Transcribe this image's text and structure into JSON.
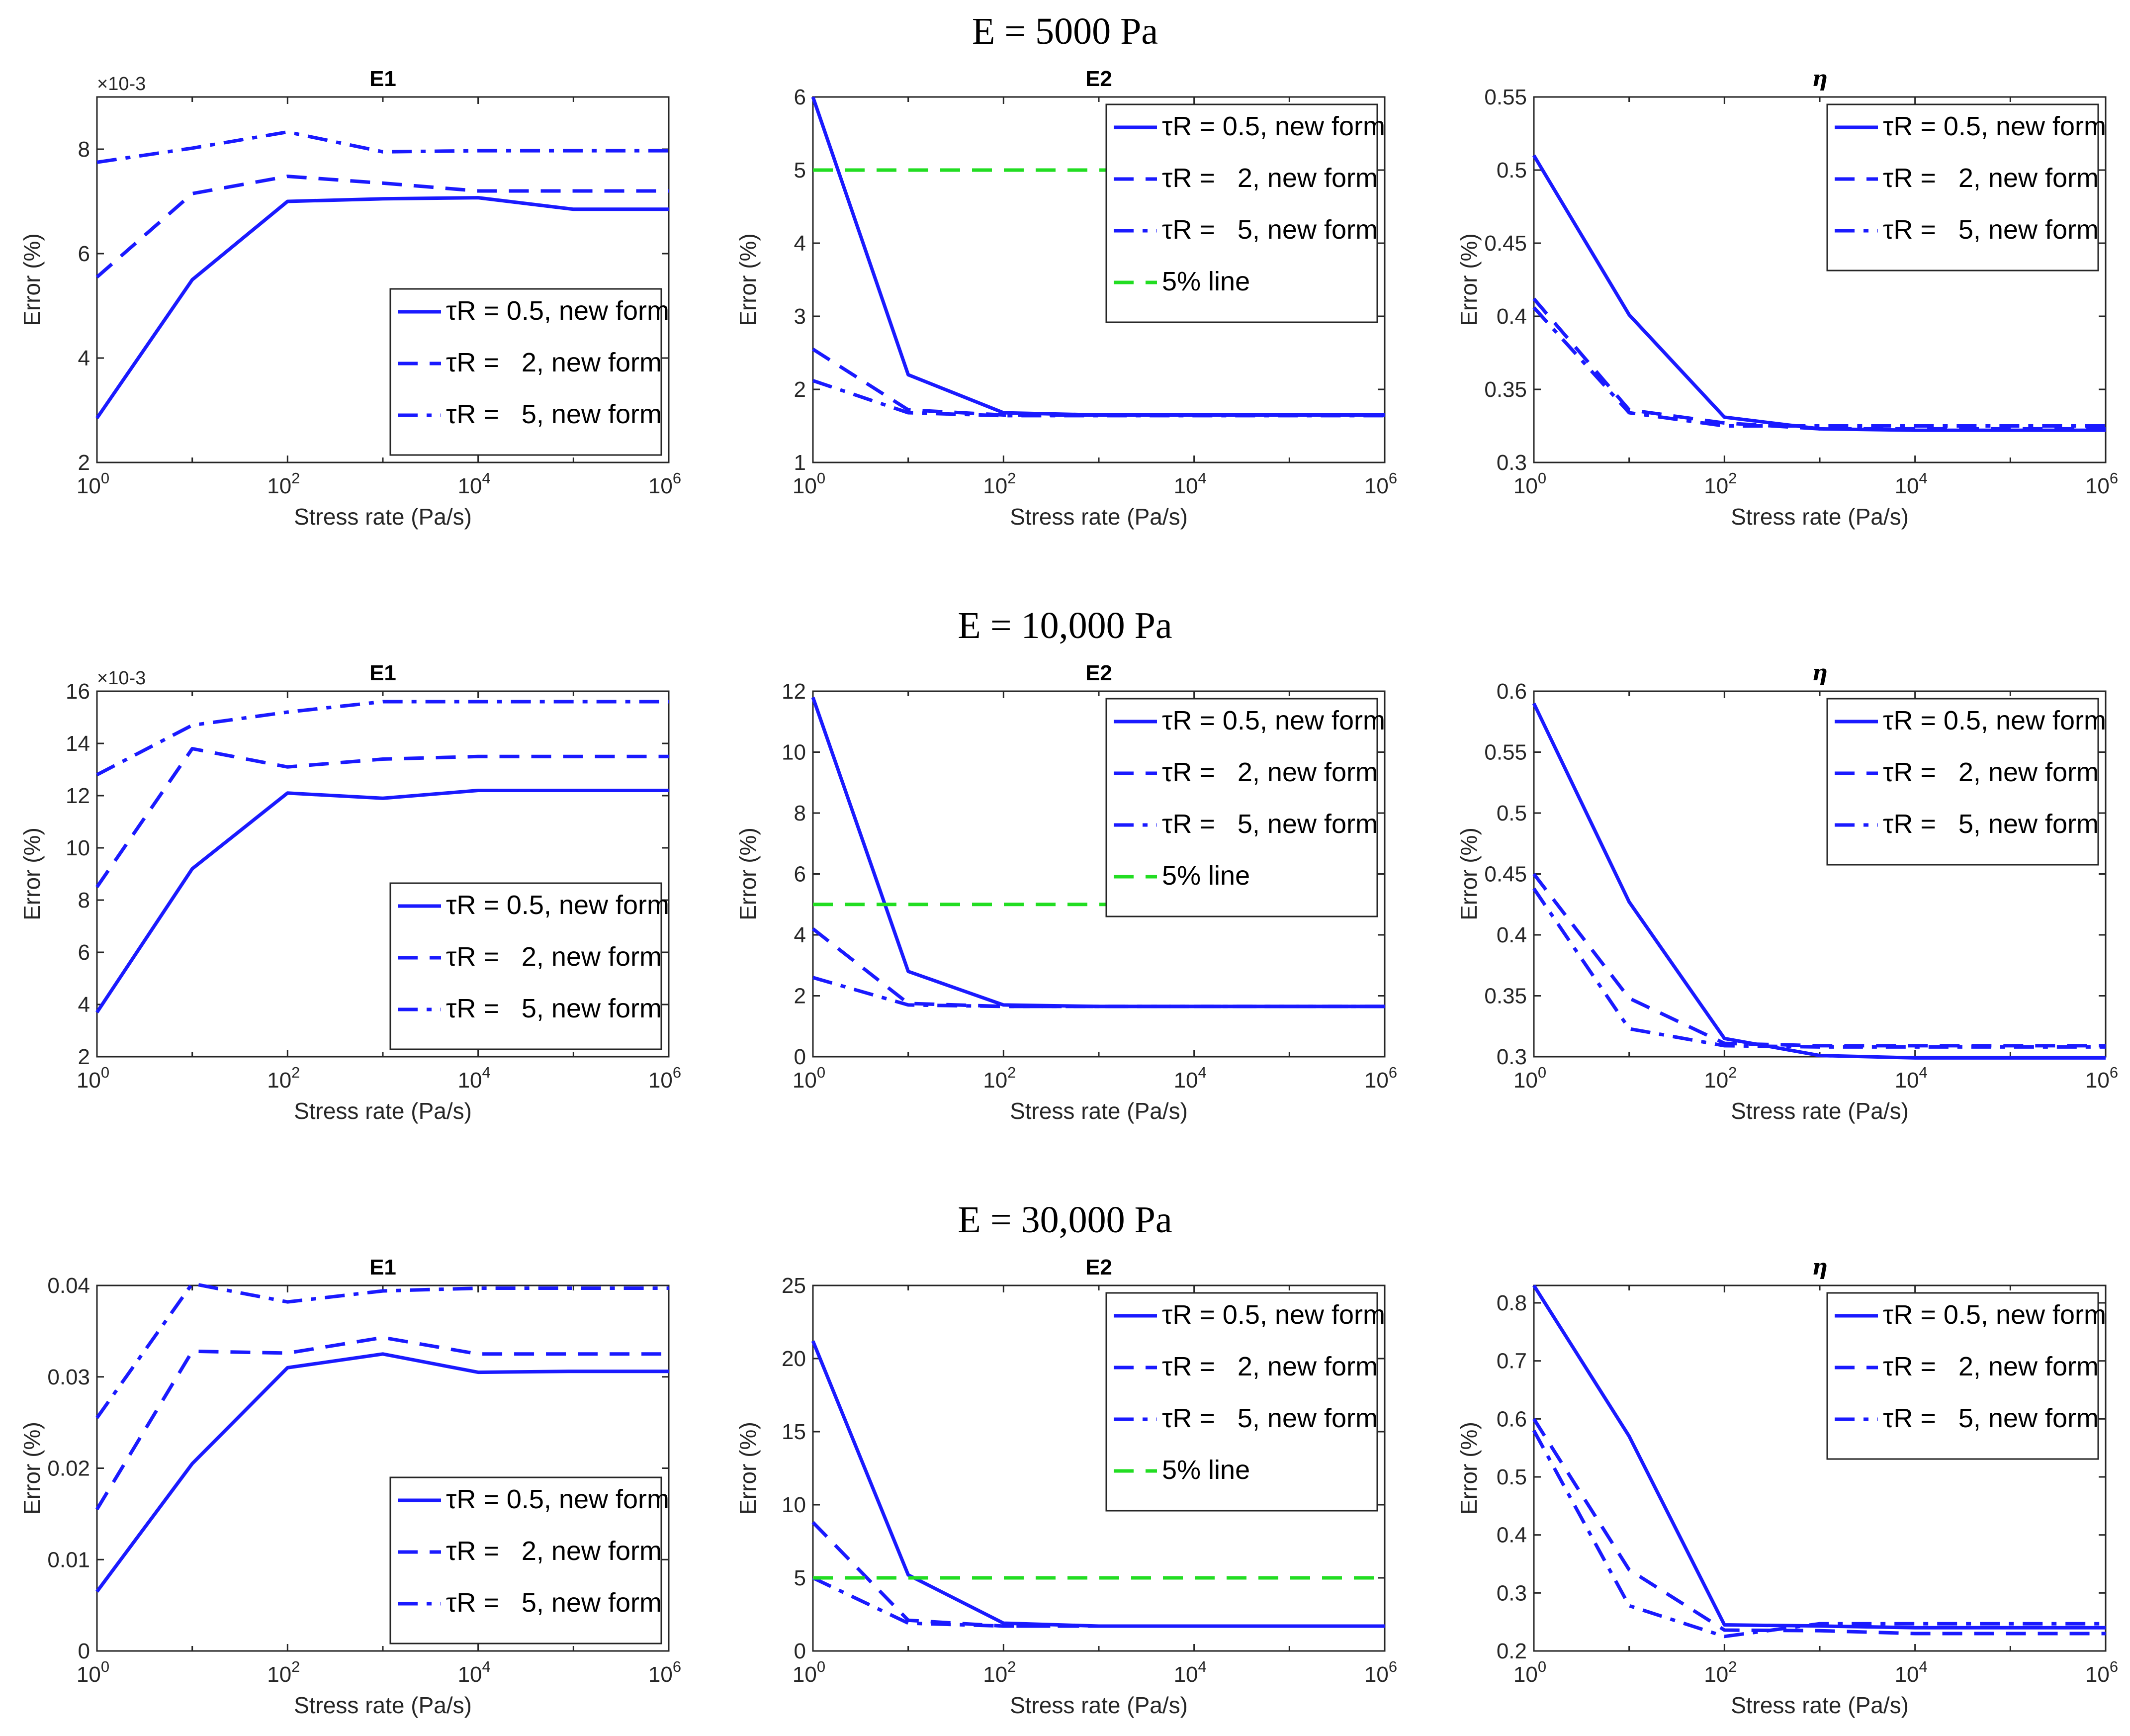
{
  "figure": {
    "row_titles": [
      "E = 5000 Pa",
      "E = 10,000 Pa",
      "E = 30,000 Pa"
    ]
  },
  "colors": {
    "series": "#1a1aff",
    "five_percent_line": "#22dd22",
    "axis": "#262626",
    "text": "#000000"
  },
  "chart_data": [
    {
      "id": "r0c0",
      "type": "line",
      "row": 0,
      "col": 0,
      "title": "E1",
      "title_style": "bold",
      "xlabel": "Stress rate (Pa/s)",
      "ylabel": "Error (%)",
      "xscale": "log",
      "xlim_exp": [
        0,
        6
      ],
      "xticks_exp": [
        0,
        2,
        4,
        6
      ],
      "xtick_base": "10",
      "ylim": [
        2,
        9
      ],
      "yticks": [
        2,
        4,
        6,
        8
      ],
      "ytick_labels": [
        "2",
        "4",
        "6",
        "8"
      ],
      "exponent_label": "×10-3",
      "legend": "bottom-right",
      "series": [
        {
          "name": "τR = 0.5, new form",
          "style": "solid",
          "x_exp": [
            0,
            1,
            2,
            3,
            4,
            5,
            6
          ],
          "values": [
            2.85,
            5.5,
            7.0,
            7.05,
            7.07,
            6.85,
            6.85
          ]
        },
        {
          "name": "τR =   2, new form",
          "style": "dashed",
          "x_exp": [
            0,
            1,
            2,
            3,
            4,
            5,
            6
          ],
          "values": [
            5.55,
            7.15,
            7.48,
            7.35,
            7.2,
            7.2,
            7.2
          ]
        },
        {
          "name": "τR =   5, new form",
          "style": "dashdot",
          "x_exp": [
            0,
            1,
            2,
            3,
            4,
            5,
            6
          ],
          "values": [
            7.75,
            8.02,
            8.33,
            7.95,
            7.97,
            7.97,
            7.97
          ]
        }
      ]
    },
    {
      "id": "r0c1",
      "type": "line",
      "row": 0,
      "col": 1,
      "title": "E2",
      "title_style": "bold",
      "xlabel": "Stress rate (Pa/s)",
      "ylabel": "Error (%)",
      "xscale": "log",
      "xlim_exp": [
        0,
        6
      ],
      "xticks_exp": [
        0,
        2,
        4,
        6
      ],
      "xtick_base": "10",
      "ylim": [
        1,
        6
      ],
      "yticks": [
        1,
        2,
        3,
        4,
        5,
        6
      ],
      "ytick_labels": [
        "1",
        "2",
        "3",
        "4",
        "5",
        "6"
      ],
      "legend": "top-right",
      "series": [
        {
          "name": "τR = 0.5, new form",
          "style": "solid",
          "x_exp": [
            0,
            1,
            2,
            3,
            4,
            5,
            6
          ],
          "values": [
            6.0,
            2.2,
            1.68,
            1.65,
            1.65,
            1.65,
            1.65
          ]
        },
        {
          "name": "τR =   2, new form",
          "style": "dashed",
          "x_exp": [
            0,
            1,
            2,
            3,
            4,
            5,
            6
          ],
          "values": [
            2.55,
            1.72,
            1.65,
            1.65,
            1.65,
            1.65,
            1.65
          ]
        },
        {
          "name": "τR =   5, new form",
          "style": "dashdot",
          "x_exp": [
            0,
            1,
            2,
            3,
            4,
            5,
            6
          ],
          "values": [
            2.12,
            1.68,
            1.64,
            1.64,
            1.64,
            1.64,
            1.64
          ]
        },
        {
          "name": "5% line",
          "style": "green-dashed",
          "x_exp": [
            0,
            6
          ],
          "values": [
            5,
            5
          ]
        }
      ]
    },
    {
      "id": "r0c2",
      "type": "line",
      "row": 0,
      "col": 2,
      "title": "η",
      "title_style": "italic",
      "xlabel": "Stress rate (Pa/s)",
      "ylabel": "Error (%)",
      "xscale": "log",
      "xlim_exp": [
        0,
        6
      ],
      "xticks_exp": [
        0,
        2,
        4,
        6
      ],
      "xtick_base": "10",
      "ylim": [
        0.3,
        0.55
      ],
      "yticks": [
        0.3,
        0.35,
        0.4,
        0.45,
        0.5,
        0.55
      ],
      "ytick_labels": [
        "0.3",
        "0.35",
        "0.4",
        "0.45",
        "0.5",
        "0.55"
      ],
      "legend": "top-right",
      "series": [
        {
          "name": "τR = 0.5, new form",
          "style": "solid",
          "x_exp": [
            0,
            1,
            2,
            3,
            4,
            5,
            6
          ],
          "values": [
            0.51,
            0.401,
            0.331,
            0.323,
            0.322,
            0.322,
            0.322
          ]
        },
        {
          "name": "τR =   2, new form",
          "style": "dashed",
          "x_exp": [
            0,
            1,
            2,
            3,
            4,
            5,
            6
          ],
          "values": [
            0.412,
            0.336,
            0.327,
            0.323,
            0.323,
            0.323,
            0.323
          ]
        },
        {
          "name": "τR =   5, new form",
          "style": "dashdot",
          "x_exp": [
            0,
            1,
            2,
            3,
            4,
            5,
            6
          ],
          "values": [
            0.406,
            0.334,
            0.325,
            0.325,
            0.325,
            0.325,
            0.325
          ]
        }
      ]
    },
    {
      "id": "r1c0",
      "type": "line",
      "row": 1,
      "col": 0,
      "title": "E1",
      "title_style": "bold",
      "xlabel": "Stress rate (Pa/s)",
      "ylabel": "Error (%)",
      "xscale": "log",
      "xlim_exp": [
        0,
        6
      ],
      "xticks_exp": [
        0,
        2,
        4,
        6
      ],
      "xtick_base": "10",
      "ylim": [
        2,
        16
      ],
      "yticks": [
        2,
        4,
        6,
        8,
        10,
        12,
        14,
        16
      ],
      "ytick_labels": [
        "2",
        "4",
        "6",
        "8",
        "10",
        "12",
        "14",
        "16"
      ],
      "exponent_label": "×10-3",
      "legend": "bottom-right",
      "series": [
        {
          "name": "τR = 0.5, new form",
          "style": "solid",
          "x_exp": [
            0,
            1,
            2,
            3,
            4,
            5,
            6
          ],
          "values": [
            3.7,
            9.2,
            12.1,
            11.9,
            12.2,
            12.2,
            12.2
          ]
        },
        {
          "name": "τR =   2, new form",
          "style": "dashed",
          "x_exp": [
            0,
            1,
            2,
            3,
            4,
            5,
            6
          ],
          "values": [
            8.5,
            13.8,
            13.1,
            13.4,
            13.5,
            13.5,
            13.5
          ]
        },
        {
          "name": "τR =   5, new form",
          "style": "dashdot",
          "x_exp": [
            0,
            1,
            2,
            3,
            4,
            5,
            6
          ],
          "values": [
            12.8,
            14.7,
            15.2,
            15.6,
            15.6,
            15.6,
            15.6
          ]
        }
      ]
    },
    {
      "id": "r1c1",
      "type": "line",
      "row": 1,
      "col": 1,
      "title": "E2",
      "title_style": "bold",
      "xlabel": "Stress rate (Pa/s)",
      "ylabel": "Error (%)",
      "xscale": "log",
      "xlim_exp": [
        0,
        6
      ],
      "xticks_exp": [
        0,
        2,
        4,
        6
      ],
      "xtick_base": "10",
      "ylim": [
        0,
        12
      ],
      "yticks": [
        0,
        2,
        4,
        6,
        8,
        10,
        12
      ],
      "ytick_labels": [
        "0",
        "2",
        "4",
        "6",
        "8",
        "10",
        "12"
      ],
      "legend": "top-right",
      "series": [
        {
          "name": "τR = 0.5, new form",
          "style": "solid",
          "x_exp": [
            0,
            1,
            2,
            3,
            4,
            5,
            6
          ],
          "values": [
            11.8,
            2.8,
            1.7,
            1.65,
            1.65,
            1.65,
            1.65
          ]
        },
        {
          "name": "τR =   2, new form",
          "style": "dashed",
          "x_exp": [
            0,
            1,
            2,
            3,
            4,
            5,
            6
          ],
          "values": [
            4.2,
            1.75,
            1.65,
            1.65,
            1.65,
            1.65,
            1.65
          ]
        },
        {
          "name": "τR =   5, new form",
          "style": "dashdot",
          "x_exp": [
            0,
            1,
            2,
            3,
            4,
            5,
            6
          ],
          "values": [
            2.6,
            1.7,
            1.65,
            1.65,
            1.65,
            1.65,
            1.65
          ]
        },
        {
          "name": "5% line",
          "style": "green-dashed",
          "x_exp": [
            0,
            6
          ],
          "values": [
            5,
            5
          ]
        }
      ]
    },
    {
      "id": "r1c2",
      "type": "line",
      "row": 1,
      "col": 2,
      "title": "η",
      "title_style": "italic",
      "xlabel": "Stress rate (Pa/s)",
      "ylabel": "Error (%)",
      "xscale": "log",
      "xlim_exp": [
        0,
        6
      ],
      "xticks_exp": [
        0,
        2,
        4,
        6
      ],
      "xtick_base": "10",
      "ylim": [
        0.3,
        0.6
      ],
      "yticks": [
        0.3,
        0.35,
        0.4,
        0.45,
        0.5,
        0.55,
        0.6
      ],
      "ytick_labels": [
        "0.3",
        "0.35",
        "0.4",
        "0.45",
        "0.5",
        "0.55",
        "0.6"
      ],
      "legend": "top-right",
      "series": [
        {
          "name": "τR = 0.5, new form",
          "style": "solid",
          "x_exp": [
            0,
            1,
            2,
            3,
            4,
            5,
            6
          ],
          "values": [
            0.59,
            0.427,
            0.315,
            0.301,
            0.299,
            0.299,
            0.299
          ]
        },
        {
          "name": "τR =   2, new form",
          "style": "dashed",
          "x_exp": [
            0,
            1,
            2,
            3,
            4,
            5,
            6
          ],
          "values": [
            0.45,
            0.348,
            0.311,
            0.309,
            0.309,
            0.309,
            0.309
          ]
        },
        {
          "name": "τR =   5, new form",
          "style": "dashdot",
          "x_exp": [
            0,
            1,
            2,
            3,
            4,
            5,
            6
          ],
          "values": [
            0.438,
            0.323,
            0.309,
            0.308,
            0.308,
            0.308,
            0.308
          ]
        }
      ]
    },
    {
      "id": "r2c0",
      "type": "line",
      "row": 2,
      "col": 0,
      "title": "E1",
      "title_style": "bold",
      "xlabel": "Stress rate (Pa/s)",
      "ylabel": "Error (%)",
      "xscale": "log",
      "xlim_exp": [
        0,
        6
      ],
      "xticks_exp": [
        0,
        2,
        4,
        6
      ],
      "xtick_base": "10",
      "ylim": [
        0,
        0.04
      ],
      "yticks": [
        0,
        0.01,
        0.02,
        0.03,
        0.04
      ],
      "ytick_labels": [
        "0",
        "0.01",
        "0.02",
        "0.03",
        "0.04"
      ],
      "legend": "bottom-right",
      "series": [
        {
          "name": "τR = 0.5, new form",
          "style": "solid",
          "x_exp": [
            0,
            1,
            2,
            3,
            4,
            5,
            6
          ],
          "values": [
            0.0065,
            0.0205,
            0.031,
            0.0325,
            0.0305,
            0.0306,
            0.0306
          ]
        },
        {
          "name": "τR =   2, new form",
          "style": "dashed",
          "x_exp": [
            0,
            1,
            2,
            3,
            4,
            5,
            6
          ],
          "values": [
            0.0155,
            0.0328,
            0.0326,
            0.0343,
            0.0325,
            0.0325,
            0.0325
          ]
        },
        {
          "name": "τR =   5, new form",
          "style": "dashdot",
          "x_exp": [
            0,
            1,
            2,
            3,
            4,
            5,
            6
          ],
          "values": [
            0.0255,
            0.0402,
            0.0382,
            0.0394,
            0.0397,
            0.0397,
            0.0397
          ]
        }
      ]
    },
    {
      "id": "r2c1",
      "type": "line",
      "row": 2,
      "col": 1,
      "title": "E2",
      "title_style": "bold",
      "xlabel": "Stress rate (Pa/s)",
      "ylabel": "Error (%)",
      "xscale": "log",
      "xlim_exp": [
        0,
        6
      ],
      "xticks_exp": [
        0,
        2,
        4,
        6
      ],
      "xtick_base": "10",
      "ylim": [
        0,
        25
      ],
      "yticks": [
        0,
        5,
        10,
        15,
        20,
        25
      ],
      "ytick_labels": [
        "0",
        "5",
        "10",
        "15",
        "20",
        "25"
      ],
      "legend": "top-right",
      "series": [
        {
          "name": "τR = 0.5, new form",
          "style": "solid",
          "x_exp": [
            0,
            1,
            2,
            3,
            4,
            5,
            6
          ],
          "values": [
            21.2,
            5.2,
            1.9,
            1.7,
            1.7,
            1.7,
            1.7
          ]
        },
        {
          "name": "τR =   2, new form",
          "style": "dashed",
          "x_exp": [
            0,
            1,
            2,
            3,
            4,
            5,
            6
          ],
          "values": [
            8.8,
            2.1,
            1.7,
            1.7,
            1.7,
            1.7,
            1.7
          ]
        },
        {
          "name": "τR =   5, new form",
          "style": "dashdot",
          "x_exp": [
            0,
            1,
            2,
            3,
            4,
            5,
            6
          ],
          "values": [
            5.0,
            1.9,
            1.7,
            1.7,
            1.7,
            1.7,
            1.7
          ]
        },
        {
          "name": "5% line",
          "style": "green-dashed",
          "x_exp": [
            0,
            6
          ],
          "values": [
            5,
            5
          ]
        }
      ]
    },
    {
      "id": "r2c2",
      "type": "line",
      "row": 2,
      "col": 2,
      "title": "η",
      "title_style": "italic",
      "xlabel": "Stress rate (Pa/s)",
      "ylabel": "Error (%)",
      "xscale": "log",
      "xlim_exp": [
        0,
        6
      ],
      "xticks_exp": [
        0,
        2,
        4,
        6
      ],
      "xtick_base": "10",
      "ylim": [
        0.2,
        0.83
      ],
      "yticks": [
        0.2,
        0.3,
        0.4,
        0.5,
        0.6,
        0.7,
        0.8
      ],
      "ytick_labels": [
        "0.2",
        "0.3",
        "0.4",
        "0.5",
        "0.6",
        "0.7",
        "0.8"
      ],
      "legend": "top-right",
      "series": [
        {
          "name": "τR = 0.5, new form",
          "style": "solid",
          "x_exp": [
            0,
            1,
            2,
            3,
            4,
            5,
            6
          ],
          "values": [
            0.83,
            0.57,
            0.245,
            0.243,
            0.24,
            0.24,
            0.24
          ]
        },
        {
          "name": "τR =   2, new form",
          "style": "dashed",
          "x_exp": [
            0,
            1,
            2,
            3,
            4,
            5,
            6
          ],
          "values": [
            0.6,
            0.34,
            0.236,
            0.235,
            0.23,
            0.23,
            0.23
          ]
        },
        {
          "name": "τR =   5, new form",
          "style": "dashdot",
          "x_exp": [
            0,
            1,
            2,
            3,
            4,
            5,
            6
          ],
          "values": [
            0.58,
            0.278,
            0.225,
            0.247,
            0.247,
            0.247,
            0.247
          ]
        }
      ]
    }
  ]
}
